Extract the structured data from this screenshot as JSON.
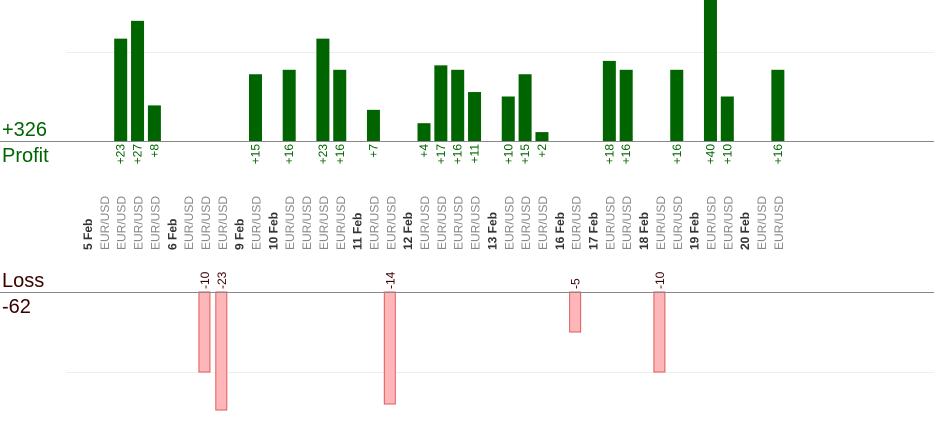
{
  "summary": {
    "profit_total": "+326",
    "profit_label": "Profit",
    "loss_label": "Loss",
    "loss_total": "-62"
  },
  "colors": {
    "profit_bar": "#006400",
    "profit_text": "#006400",
    "loss_bar": "#ffb6b9",
    "loss_bar_border": "#e05a5a",
    "loss_text": "#3a0000",
    "axis": "#888888",
    "grid": "#eeeeee",
    "instrument_text": "#888888",
    "date_text": "#333333"
  },
  "chart_data": {
    "type": "bar",
    "title": "",
    "profit_scale_max": 20,
    "loss_scale_max": 10,
    "days": [
      {
        "date": "5 Feb",
        "trades": [
          {
            "pair": "EUR/USD",
            "pips": 0
          },
          {
            "pair": "EUR/USD",
            "pips": 23
          },
          {
            "pair": "EUR/USD",
            "pips": 27
          },
          {
            "pair": "EUR/USD",
            "pips": 8
          }
        ]
      },
      {
        "date": "6 Feb",
        "trades": [
          {
            "pair": "EUR/USD",
            "pips": 0
          },
          {
            "pair": "EUR/USD",
            "pips": -10
          },
          {
            "pair": "EUR/USD",
            "pips": -23
          }
        ]
      },
      {
        "date": "9 Feb",
        "trades": [
          {
            "pair": "EUR/USD",
            "pips": 15
          }
        ]
      },
      {
        "date": "10 Feb",
        "trades": [
          {
            "pair": "EUR/USD",
            "pips": 16
          },
          {
            "pair": "EUR/USD",
            "pips": 0
          },
          {
            "pair": "EUR/USD",
            "pips": 23
          },
          {
            "pair": "EUR/USD",
            "pips": 16
          }
        ]
      },
      {
        "date": "11 Feb",
        "trades": [
          {
            "pair": "EUR/USD",
            "pips": 7
          },
          {
            "pair": "EUR/USD",
            "pips": -14
          }
        ]
      },
      {
        "date": "12 Feb",
        "trades": [
          {
            "pair": "EUR/USD",
            "pips": 4
          },
          {
            "pair": "EUR/USD",
            "pips": 17
          },
          {
            "pair": "EUR/USD",
            "pips": 16
          },
          {
            "pair": "EUR/USD",
            "pips": 11
          }
        ]
      },
      {
        "date": "13 Feb",
        "trades": [
          {
            "pair": "EUR/USD",
            "pips": 10
          },
          {
            "pair": "EUR/USD",
            "pips": 15
          },
          {
            "pair": "EUR/USD",
            "pips": 2
          }
        ]
      },
      {
        "date": "16 Feb",
        "trades": [
          {
            "pair": "EUR/USD",
            "pips": -5
          }
        ]
      },
      {
        "date": "17 Feb",
        "trades": [
          {
            "pair": "EUR/USD",
            "pips": 18
          },
          {
            "pair": "EUR/USD",
            "pips": 16
          }
        ]
      },
      {
        "date": "18 Feb",
        "trades": [
          {
            "pair": "EUR/USD",
            "pips": -10
          },
          {
            "pair": "EUR/USD",
            "pips": 16
          }
        ]
      },
      {
        "date": "19 Feb",
        "trades": [
          {
            "pair": "EUR/USD",
            "pips": 40
          },
          {
            "pair": "EUR/USD",
            "pips": 10
          }
        ]
      },
      {
        "date": "20 Feb",
        "trades": [
          {
            "pair": "EUR/USD",
            "pips": 0
          },
          {
            "pair": "EUR/USD",
            "pips": 16
          }
        ]
      }
    ]
  }
}
